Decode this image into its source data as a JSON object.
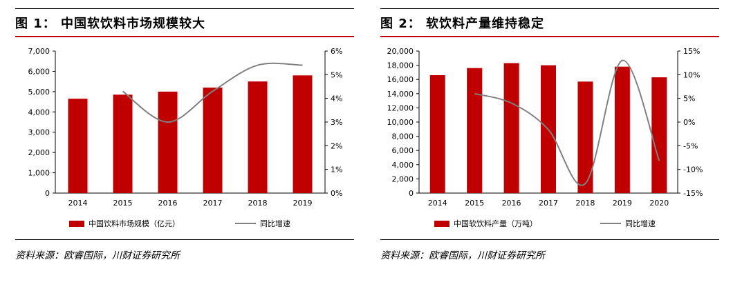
{
  "figures": [
    {
      "title": "图 1：  中国软饮料市场规模较大",
      "source": "资料来源：欧睿国际，川财证券研究所",
      "chart_data": {
        "type": "bar",
        "categories": [
          "2014",
          "2015",
          "2016",
          "2017",
          "2018",
          "2019"
        ],
        "series": [
          {
            "name": "中国饮料市场规模（亿元）",
            "type": "bar",
            "axis": "left",
            "color": "#c00000",
            "values": [
              4650,
              4850,
              5000,
              5200,
              5500,
              5800
            ]
          },
          {
            "name": "同比增速",
            "type": "line",
            "axis": "right",
            "color": "#808080",
            "values": [
              null,
              4.3,
              3.0,
              4.3,
              5.4,
              5.4
            ]
          }
        ],
        "left_axis": {
          "ylim": [
            0,
            7000
          ],
          "ticks": [
            "0",
            "1,000",
            "2,000",
            "3,000",
            "4,000",
            "5,000",
            "6,000",
            "7,000"
          ]
        },
        "right_axis": {
          "ylim": [
            0,
            6
          ],
          "ticks": [
            "0%",
            "1%",
            "2%",
            "3%",
            "4%",
            "5%",
            "6%"
          ]
        },
        "legend_position": "bottom"
      }
    },
    {
      "title": "图 2：  软饮料产量维持稳定",
      "source": "资料来源：欧睿国际，川财证券研究所",
      "chart_data": {
        "type": "bar",
        "categories": [
          "2014",
          "2015",
          "2016",
          "2017",
          "2018",
          "2019",
          "2020"
        ],
        "series": [
          {
            "name": "中国软饮料产量（万吨）",
            "type": "bar",
            "axis": "left",
            "color": "#c00000",
            "values": [
              16600,
              17600,
              18300,
              18000,
              15700,
              17800,
              16300
            ]
          },
          {
            "name": "同比增速",
            "type": "line",
            "axis": "right",
            "color": "#808080",
            "values": [
              null,
              6.0,
              4.0,
              -1.6,
              -13.0,
              13.0,
              -8.2
            ]
          }
        ],
        "left_axis": {
          "ylim": [
            0,
            20000
          ],
          "ticks": [
            "0",
            "2,000",
            "4,000",
            "6,000",
            "8,000",
            "10,000",
            "12,000",
            "14,000",
            "16,000",
            "18,000",
            "20,000"
          ]
        },
        "right_axis": {
          "ylim": [
            -15,
            15
          ],
          "ticks": [
            "-15%",
            "-10%",
            "-5%",
            "0%",
            "5%",
            "10%",
            "15%"
          ]
        },
        "legend_position": "bottom"
      }
    }
  ]
}
